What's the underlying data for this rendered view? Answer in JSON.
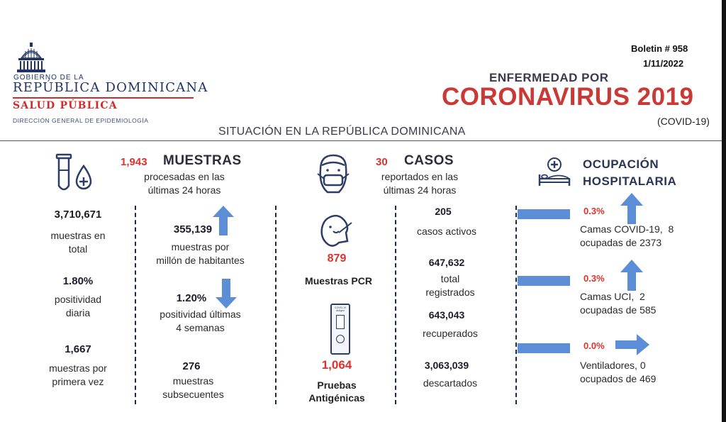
{
  "header": {
    "logo_gov_small": "GOBIERNO DE LA",
    "logo_gov_big": "REPÚBLICA DOMINICANA",
    "logo_salud": "SALUD PÚBLICA",
    "logo_direccion": "DIRECCIÓN GENERAL DE EPIDEMIOLOGÍA",
    "bulletin": "Boletin # 958",
    "date": "1/11/2022",
    "title_small": "ENFERMEDAD POR",
    "title_big": "CORONAVIRUS 2019",
    "title_sub": "(COVID-19)",
    "situation": "SITUACIÓN EN LA REPÚBLICA DOMINICANA"
  },
  "muestras": {
    "count": "1,943",
    "title": "MUESTRAS",
    "subtitle_1": "procesadas en las",
    "subtitle_2": "últimas 24 horas",
    "total_value": "3,710,671",
    "total_label_1": "muestras en",
    "total_label_2": "total",
    "positividad_value": "1.80%",
    "positividad_label_1": "positividad",
    "positividad_label_2": "diaria",
    "primera_value": "1,667",
    "primera_label_1": "muestras por",
    "primera_label_2": "primera vez",
    "millon_value": "355,139",
    "millon_label_1": "muestras por",
    "millon_label_2": "millón de habitantes",
    "pos4_value": "1.20%",
    "pos4_label_1": "positividad últimas",
    "pos4_label_2": "4 semanas",
    "subsec_value": "276",
    "subsec_label_1": "muestras",
    "subsec_label_2": "subsecuentes"
  },
  "casos": {
    "count": "30",
    "title": "CASOS",
    "subtitle_1": "reportados en las",
    "subtitle_2": "últimas 24 horas",
    "pcr_value": "879",
    "pcr_label": "Muestras PCR",
    "ant_value": "1,064",
    "ant_label_1": "Pruebas",
    "ant_label_2": "Antigénicas",
    "test_card_text": "COVID-19 Antigen",
    "activos_value": "205",
    "activos_label": "casos activos",
    "total_value": "647,632",
    "total_label_1": "total",
    "total_label_2": "registrados",
    "recup_value": "643,043",
    "recup_label": "recuperados",
    "desc_value": "3,063,039",
    "desc_label": "descartados"
  },
  "ocupacion": {
    "title_1": "OCUPACIÓN",
    "title_2": "HOSPITALARIA",
    "covid_pct": "0.3%",
    "covid_label_1": "Camas COVID-19,  8",
    "covid_label_2": "ocupadas de 2373",
    "uci_pct": "0.3%",
    "uci_label_1": "Camas UCI,  2",
    "uci_label_2": "ocupadas de 585",
    "vent_pct": "0.0%",
    "vent_label_1": "Ventiladores, 0",
    "vent_label_2": "ocupados de 469"
  },
  "colors": {
    "red": "#e0302c",
    "navy": "#1f3462",
    "arrow_blue": "#5b8ed6"
  }
}
